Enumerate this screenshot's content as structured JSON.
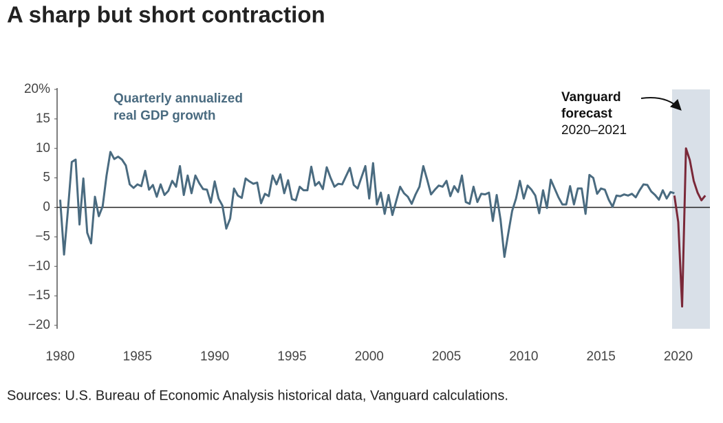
{
  "chart_data": {
    "type": "line",
    "title": "A sharp but short contraction",
    "source": "Sources: U.S. Bureau of Economic Analysis historical data, Vanguard calculations.",
    "annotations": [
      {
        "lines": [
          "Quarterly annualized",
          "real GDP growth"
        ]
      },
      {
        "lines": [
          "Vanguard",
          "forecast",
          "2020–2021"
        ]
      }
    ],
    "forecast_period": [
      2019.6,
      2022.05
    ],
    "xlim": [
      1979.8,
      2022.05
    ],
    "xticks": [
      1980,
      1985,
      1990,
      1995,
      2000,
      2005,
      2010,
      2015,
      2020
    ],
    "ylim": [
      -20,
      20
    ],
    "yticks": [
      {
        "value": -20,
        "label": "−20"
      },
      {
        "value": -15,
        "label": "−15"
      },
      {
        "value": -10,
        "label": "−10"
      },
      {
        "value": -5,
        "label": "−5"
      },
      0,
      5,
      10,
      15,
      {
        "value": 20,
        "label": "20%"
      }
    ],
    "series": [
      {
        "color": "#4a6b80",
        "x": [
          1980,
          1980.25,
          1980.5,
          1980.75,
          1981,
          1981.25,
          1981.5,
          1981.75,
          1982,
          1982.25,
          1982.5,
          1982.75,
          1983,
          1983.25,
          1983.5,
          1983.75,
          1984,
          1984.25,
          1984.5,
          1984.75,
          1985,
          1985.25,
          1985.5,
          1985.75,
          1986,
          1986.25,
          1986.5,
          1986.75,
          1987,
          1987.25,
          1987.5,
          1987.75,
          1988,
          1988.25,
          1988.5,
          1988.75,
          1989,
          1989.25,
          1989.5,
          1989.75,
          1990,
          1990.25,
          1990.5,
          1990.75,
          1991,
          1991.25,
          1991.5,
          1991.75,
          1992,
          1992.25,
          1992.5,
          1992.75,
          1993,
          1993.25,
          1993.5,
          1993.75,
          1994,
          1994.25,
          1994.5,
          1994.75,
          1995,
          1995.25,
          1995.5,
          1995.75,
          1996,
          1996.25,
          1996.5,
          1996.75,
          1997,
          1997.25,
          1997.5,
          1997.75,
          1998,
          1998.25,
          1998.5,
          1998.75,
          1999,
          1999.25,
          1999.5,
          1999.75,
          2000,
          2000.25,
          2000.5,
          2000.75,
          2001,
          2001.25,
          2001.5,
          2001.75,
          2002,
          2002.25,
          2002.5,
          2002.75,
          2003,
          2003.25,
          2003.5,
          2003.75,
          2004,
          2004.25,
          2004.5,
          2004.75,
          2005,
          2005.25,
          2005.5,
          2005.75,
          2006,
          2006.25,
          2006.5,
          2006.75,
          2007,
          2007.25,
          2007.5,
          2007.75,
          2008,
          2008.25,
          2008.5,
          2008.75,
          2009,
          2009.25,
          2009.5,
          2009.75,
          2010,
          2010.25,
          2010.5,
          2010.75,
          2011,
          2011.25,
          2011.5,
          2011.75,
          2012,
          2012.25,
          2012.5,
          2012.75,
          2013,
          2013.25,
          2013.5,
          2013.75,
          2014,
          2014.25,
          2014.5,
          2014.75,
          2015,
          2015.25,
          2015.5,
          2015.75,
          2016,
          2016.25,
          2016.5,
          2016.75,
          2017,
          2017.25,
          2017.5,
          2017.75,
          2018,
          2018.25,
          2018.5,
          2018.75,
          2019,
          2019.25,
          2019.5,
          2019.75
        ],
        "values": [
          1.3,
          -8.0,
          -0.5,
          7.7,
          8.1,
          -2.9,
          4.9,
          -4.3,
          -6.1,
          1.8,
          -1.5,
          0.2,
          5.4,
          9.4,
          8.2,
          8.6,
          8.1,
          7.1,
          3.9,
          3.3,
          3.9,
          3.6,
          6.2,
          3.0,
          3.8,
          1.8,
          3.9,
          2.1,
          2.8,
          4.5,
          3.5,
          7.0,
          2.1,
          5.4,
          2.4,
          5.4,
          4.1,
          3.1,
          3.0,
          0.8,
          4.4,
          1.5,
          0.3,
          -3.6,
          -1.9,
          3.2,
          2.0,
          1.6,
          4.9,
          4.4,
          4.0,
          4.2,
          0.7,
          2.3,
          1.9,
          5.4,
          3.9,
          5.6,
          2.4,
          4.6,
          1.4,
          1.2,
          3.5,
          2.9,
          2.9,
          6.9,
          3.7,
          4.3,
          3.1,
          6.8,
          5.0,
          3.5,
          4.0,
          3.9,
          5.3,
          6.7,
          3.8,
          3.2,
          5.1,
          7.0,
          1.5,
          7.5,
          0.5,
          2.5,
          -1.1,
          2.1,
          -1.3,
          1.1,
          3.5,
          2.4,
          1.8,
          0.6,
          2.2,
          3.5,
          7.0,
          4.7,
          2.2,
          3.0,
          3.7,
          3.5,
          4.5,
          1.9,
          3.6,
          2.6,
          5.4,
          0.9,
          0.6,
          3.5,
          0.9,
          2.3,
          2.2,
          2.5,
          -2.3,
          2.1,
          -2.1,
          -8.4,
          -4.4,
          -0.6,
          1.5,
          4.5,
          1.5,
          3.7,
          3.0,
          2.0,
          -1.0,
          2.9,
          -0.1,
          4.7,
          3.2,
          1.7,
          0.5,
          0.5,
          3.6,
          0.5,
          3.2,
          3.2,
          -1.1,
          5.5,
          5.0,
          2.3,
          3.2,
          3.0,
          1.3,
          0.1,
          2.0,
          1.9,
          2.2,
          2.0,
          2.3,
          1.7,
          2.9,
          3.9,
          3.8,
          2.7,
          2.1,
          1.3,
          2.9,
          1.5,
          2.6,
          2.4
        ]
      },
      {
        "color": "#7a2838",
        "x": [
          2019.75,
          2020,
          2020.25,
          2020.5,
          2020.75,
          2021,
          2021.25,
          2021.5,
          2021.75
        ],
        "values": [
          2.0,
          -2.5,
          -16.8,
          10.0,
          8.0,
          4.5,
          2.5,
          1.2,
          2.0
        ]
      }
    ]
  }
}
